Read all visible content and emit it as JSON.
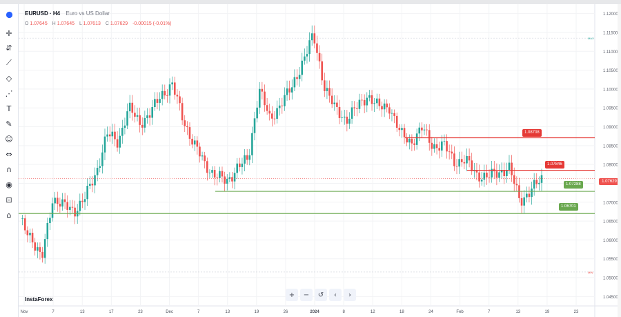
{
  "symbol": {
    "name": "EURUSD · H4",
    "description": "Euro vs US Dollar"
  },
  "ohlc": {
    "o_label": "O",
    "o": "1.07645",
    "h_label": "H",
    "h": "1.07645",
    "l_label": "L",
    "l": "1.07613",
    "c_label": "C",
    "c": "1.07629",
    "change": "-0.00015 (-0.01%)"
  },
  "brand": "InstaForex",
  "current_price": "1.07629",
  "colors": {
    "up": "#26a69a",
    "down": "#ef5350",
    "support": "#6aa84f",
    "resistance": "#e53935",
    "grid": "#e9ecf2"
  },
  "navigation": {
    "zoom_in": "+",
    "zoom_out": "−",
    "reset": "↺",
    "prev": "‹",
    "next": "›"
  },
  "toolbar_icons": [
    "chart-type-icon",
    "crosshair-icon",
    "indicators-icon",
    "trend-line-icon",
    "fib-icon",
    "pattern-icon",
    "text-icon",
    "brush-icon",
    "emoji-icon",
    "ruler-icon",
    "magnet-icon",
    "eye-icon",
    "lock-icon",
    "trash-icon"
  ],
  "chart_data": {
    "type": "candlestick",
    "title": "EURUSD · H4",
    "y_ticks": [
      "1.12000",
      "1.11500",
      "1.11000",
      "1.10500",
      "1.10000",
      "1.09500",
      "1.09000",
      "1.08500",
      "1.08000",
      "1.07500",
      "1.07000",
      "1.06500",
      "1.06000",
      "1.05500",
      "1.05000",
      "1.04500"
    ],
    "ylim": [
      1.0425,
      1.1225
    ],
    "x_ticks": [
      "Nov",
      "7",
      "13",
      "17",
      "23",
      "Dec",
      "7",
      "13",
      "19",
      "26",
      "2024",
      "8",
      "12",
      "18",
      "24",
      "Feb",
      "7",
      "13",
      "19",
      "23"
    ],
    "x_tick_bold": [
      "2024"
    ],
    "scale_labels": {
      "max": "MAX",
      "min": "MIN"
    },
    "max_level": 1.1135,
    "min_level": 1.0515,
    "anchor_closes": [
      1.0648,
      1.0612,
      1.0545,
      1.0712,
      1.069,
      1.0678,
      1.0712,
      1.0778,
      1.088,
      1.086,
      1.095,
      1.091,
      1.0935,
      1.0985,
      1.1012,
      1.092,
      1.0855,
      1.08,
      1.0772,
      1.0752,
      1.0795,
      1.081,
      1.1005,
      1.0915,
      1.0965,
      1.1,
      1.1075,
      1.114,
      1.101,
      1.0945,
      1.092,
      1.095,
      1.0985,
      1.095,
      1.0955,
      1.088,
      1.086,
      1.0895,
      1.085,
      1.085,
      1.0808,
      1.081,
      1.0775,
      1.0765,
      1.078,
      1.079,
      1.0705,
      1.073,
      1.0762
    ],
    "horizontal_levels": [
      {
        "label": "1.08708",
        "value": 1.08708,
        "color": "#e53935"
      },
      {
        "label": "1.07846",
        "value": 1.07846,
        "color": "#e53935"
      },
      {
        "label": "1.07288",
        "value": 1.07288,
        "color": "#6aa84f"
      },
      {
        "label": "1.06701",
        "value": 1.06701,
        "color": "#6aa84f"
      }
    ]
  }
}
